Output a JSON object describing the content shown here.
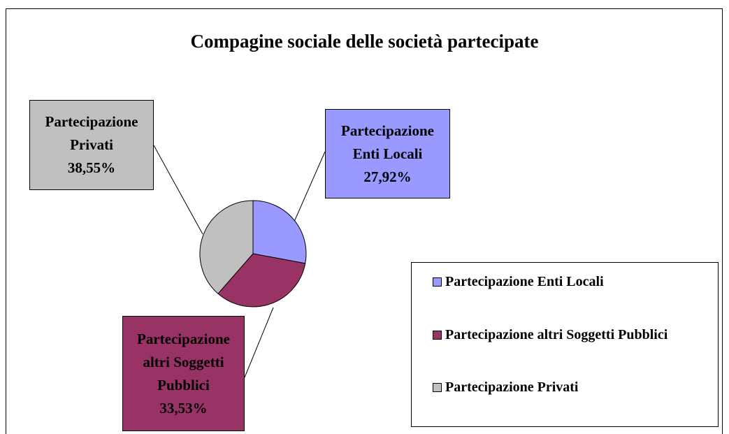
{
  "chart_data": {
    "type": "pie",
    "title": "Compagine sociale delle società partecipate",
    "categories": [
      "Partecipazione Enti Locali",
      "Partecipazione altri Soggetti Pubblici",
      "Partecipazione  Privati"
    ],
    "values": [
      27.92,
      33.53,
      38.55
    ],
    "value_labels": [
      "27,92%",
      "33,53%",
      "38,55%"
    ],
    "colors": [
      "#9999ff",
      "#993366",
      "#c0c0c0"
    ],
    "legend": "right"
  }
}
